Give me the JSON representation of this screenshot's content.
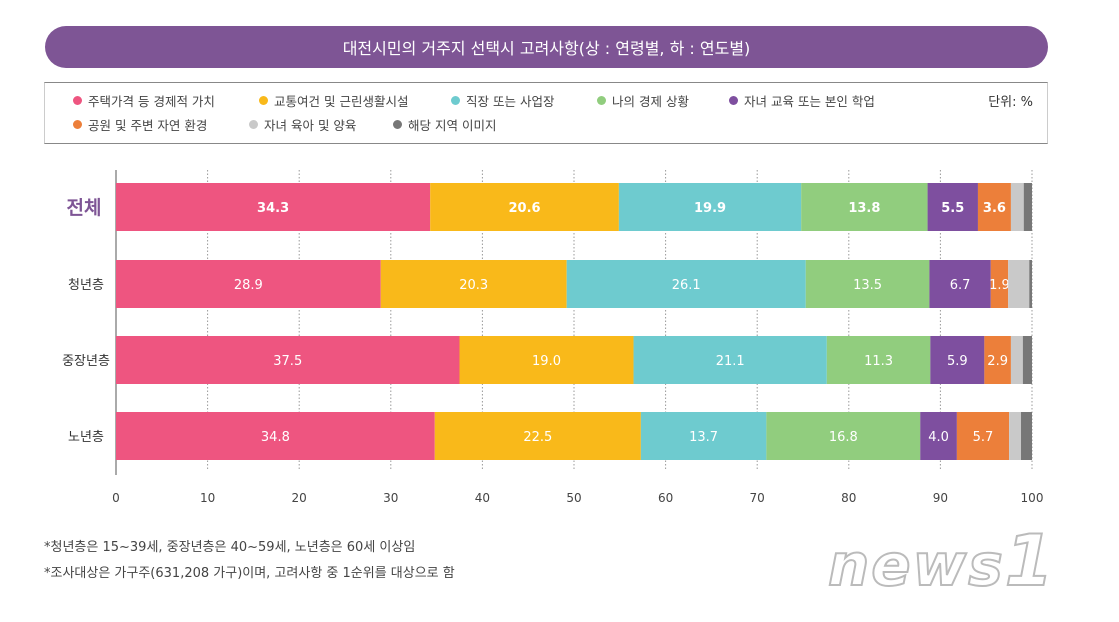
{
  "chart_data": {
    "type": "bar",
    "orientation": "horizontal",
    "stacked": true,
    "title": "대전시민의 거주지 선택시 고려사항(상 : 연령별, 하 : 연도별)",
    "unit": "단위: %",
    "categories": [
      "전체",
      "청년층",
      "중장년층",
      "노년층"
    ],
    "xlim": [
      0,
      100
    ],
    "xticks": [
      0,
      10,
      20,
      30,
      40,
      50,
      60,
      70,
      80,
      90,
      100
    ],
    "grid": "vertical dotted",
    "legend_position": "top",
    "series": [
      {
        "name": "주택가격 등 경제적 가치",
        "color": "#ee5580",
        "values": [
          34.3,
          28.9,
          37.5,
          34.8
        ],
        "labeled": true
      },
      {
        "name": "교통여건 및 근린생활시설",
        "color": "#f9b91a",
        "values": [
          20.6,
          20.3,
          19.0,
          22.5
        ],
        "labeled": true
      },
      {
        "name": "직장 또는 사업장",
        "color": "#6ecbcf",
        "values": [
          19.9,
          26.1,
          21.1,
          13.7
        ],
        "labeled": true
      },
      {
        "name": "나의 경제 상황",
        "color": "#91cd7e",
        "values": [
          13.8,
          13.5,
          11.3,
          16.8
        ],
        "labeled": true
      },
      {
        "name": "자녀 교육 또는 본인 학업",
        "color": "#7e4f9f",
        "values": [
          5.5,
          6.7,
          5.9,
          4.0
        ],
        "labeled": true
      },
      {
        "name": "공원 및 주변 자연 환경",
        "color": "#ec7f3a",
        "values": [
          3.6,
          1.9,
          2.9,
          5.7
        ],
        "labeled": true
      },
      {
        "name": "자녀 육아 및 양육",
        "color": "#c9c9c9",
        "values": [
          1.4,
          2.3,
          1.3,
          1.3
        ],
        "labeled": false
      },
      {
        "name": "해당 지역 이미지",
        "color": "#777777",
        "values": [
          0.9,
          0.3,
          1.0,
          1.2
        ],
        "labeled": false
      }
    ]
  },
  "notes": [
    "*청년층은 15~39세, 중장년층은 40~59세, 노년층은 60세 이상임",
    "*조사대상은 가구주(631,208 가구)이며, 고려사항 중 1순위를 대상으로 함"
  ],
  "logo": "news1",
  "accent": "#7e5595"
}
